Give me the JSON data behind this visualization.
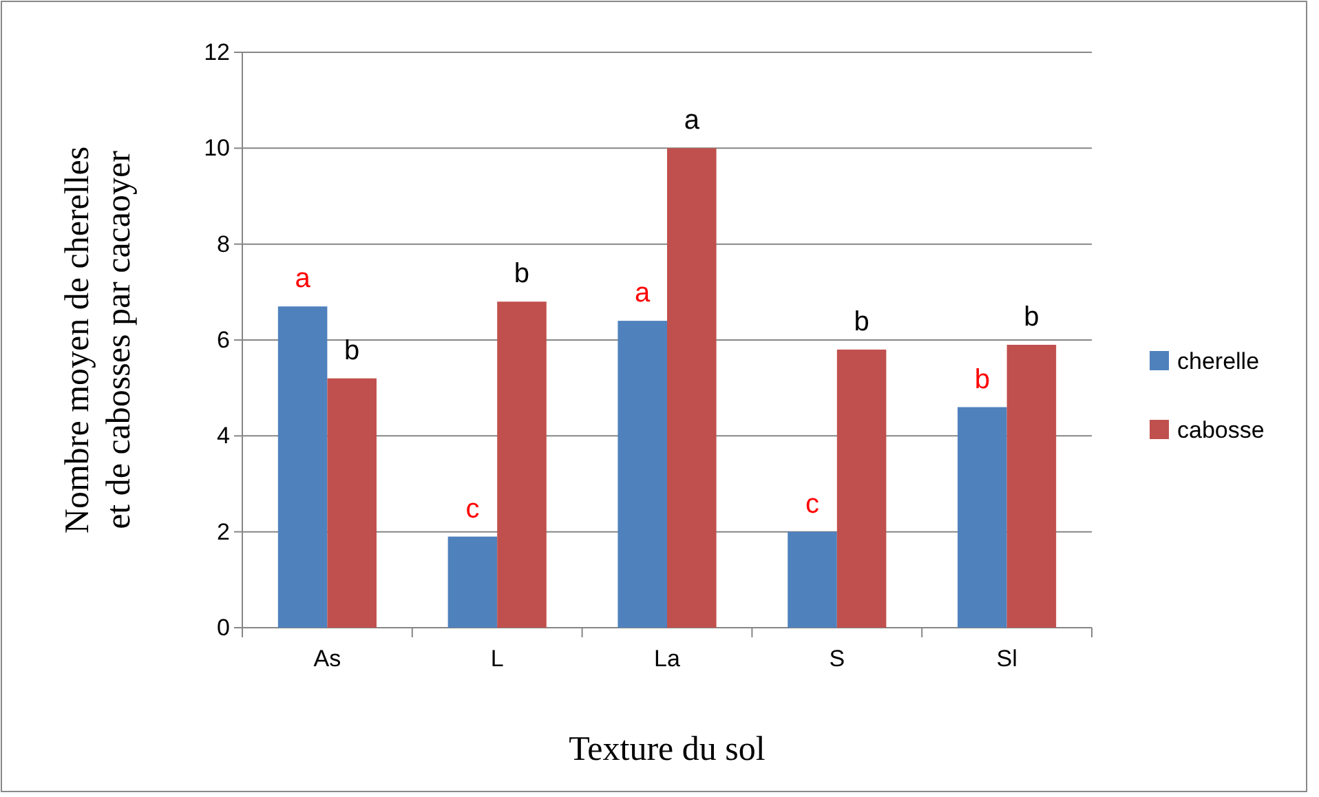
{
  "chart_data": {
    "type": "bar",
    "xlabel": "Texture du sol",
    "ylabel": "Nombre moyen de  cherelles et de cabosses par cacaoyer",
    "categories": [
      "As",
      "L",
      "La",
      "S",
      "Sl"
    ],
    "series": [
      {
        "name": "cherelle",
        "color": "#4f81bd",
        "values": [
          6.7,
          1.9,
          6.4,
          2.0,
          4.6
        ],
        "value_labels": [
          "a",
          "c",
          "a",
          "c",
          "b"
        ]
      },
      {
        "name": "cabosse",
        "color": "#c0504d",
        "values": [
          5.2,
          6.8,
          10.0,
          5.8,
          5.9
        ],
        "value_labels": [
          "b",
          "b",
          "a",
          "b",
          "b"
        ]
      }
    ],
    "ylim": [
      0,
      12
    ],
    "yticks": [
      0,
      2,
      4,
      6,
      8,
      10,
      12
    ],
    "grid": "y",
    "legend": "right"
  }
}
